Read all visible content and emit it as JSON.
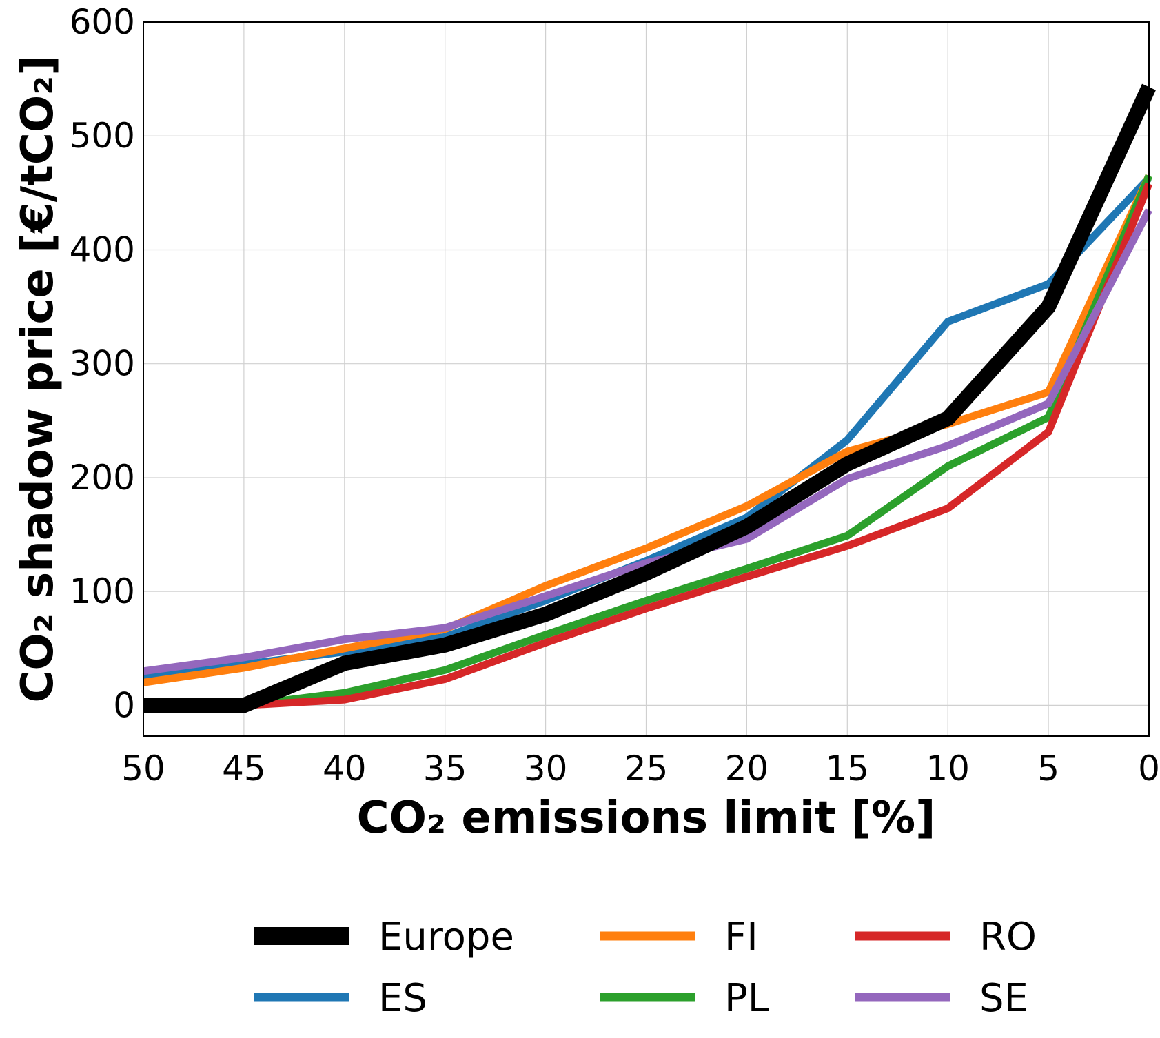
{
  "chart_data": {
    "type": "line",
    "xlabel": "CO₂ emissions limit [%]",
    "ylabel": "CO₂ shadow price [€/tCO₂]",
    "x": [
      50,
      45,
      40,
      35,
      30,
      25,
      20,
      15,
      10,
      5,
      0
    ],
    "xticks": [
      "50",
      "45",
      "40",
      "35",
      "30",
      "25",
      "20",
      "15",
      "10",
      "5",
      "0"
    ],
    "yticks": [
      "0",
      "100",
      "200",
      "300",
      "400",
      "500",
      "600"
    ],
    "xlim": [
      50,
      0
    ],
    "ylim": [
      -27,
      600
    ],
    "grid": true,
    "legend_position": "bottom",
    "series": [
      {
        "name": "Europe",
        "color": "#000000",
        "values": [
          0,
          0,
          37,
          53,
          80,
          116,
          157,
          212,
          252,
          350,
          543
        ]
      },
      {
        "name": "ES",
        "color": "#1f77b4",
        "values": [
          25,
          36,
          47,
          60,
          92,
          127,
          165,
          233,
          337,
          370,
          463
        ]
      },
      {
        "name": "FI",
        "color": "#ff7f0e",
        "values": [
          20,
          33,
          50,
          67,
          105,
          138,
          175,
          223,
          247,
          275,
          465
        ]
      },
      {
        "name": "PL",
        "color": "#2ca02c",
        "values": [
          0,
          0,
          11,
          31,
          62,
          92,
          120,
          149,
          210,
          253,
          465
        ]
      },
      {
        "name": "RO",
        "color": "#d62728",
        "values": [
          0,
          0,
          5,
          23,
          55,
          85,
          113,
          140,
          173,
          240,
          458
        ]
      },
      {
        "name": "SE",
        "color": "#9467bd",
        "values": [
          30,
          42,
          58,
          68,
          96,
          125,
          146,
          199,
          228,
          265,
          435
        ]
      }
    ]
  }
}
